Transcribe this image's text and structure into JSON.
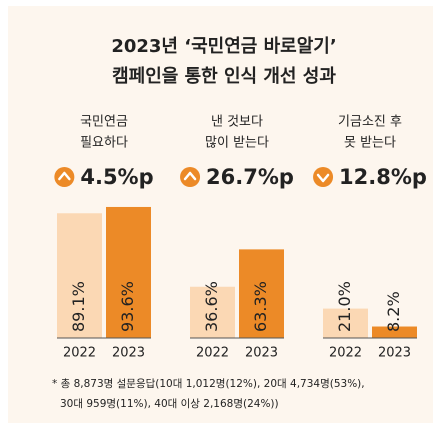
{
  "title": "2023년 ‘국민연금 바로알기’",
  "subtitle": "캠페인을 통한 인식 개선 성과",
  "notes": [
    "* 총 8,873명 설문응답(10대 1,012명(12%), 20대 4,734명(53%),",
    "30대 959명(11%), 40대 이상 2,168명(24%))"
  ],
  "chart_data": [
    {
      "type": "bar",
      "label": [
        "국민연금",
        "필요하다"
      ],
      "change": "4.5%p",
      "direction": "up",
      "categories": [
        "2022",
        "2023"
      ],
      "values": [
        89.1,
        93.6
      ],
      "value_labels": [
        "89.1%",
        "93.6%"
      ],
      "colors": [
        "#fbd8b4",
        "#ec8a27"
      ],
      "ylim": [
        0,
        100
      ]
    },
    {
      "type": "bar",
      "label": [
        "낸 것보다",
        "많이 받는다"
      ],
      "change": "26.7%p",
      "direction": "up",
      "categories": [
        "2022",
        "2023"
      ],
      "values": [
        36.6,
        63.3
      ],
      "value_labels": [
        "36.6%",
        "63.3%"
      ],
      "colors": [
        "#fbd8b4",
        "#ec8a27"
      ],
      "ylim": [
        0,
        100
      ]
    },
    {
      "type": "bar",
      "label": [
        "기금소진 후",
        "못 받는다"
      ],
      "change": "12.8%p",
      "direction": "down",
      "categories": [
        "2022",
        "2023"
      ],
      "values": [
        21.0,
        8.2
      ],
      "value_labels": [
        "21.0%",
        "8.2%"
      ],
      "colors": [
        "#fbd8b4",
        "#ec8a27"
      ],
      "ylim": [
        0,
        100
      ]
    }
  ]
}
